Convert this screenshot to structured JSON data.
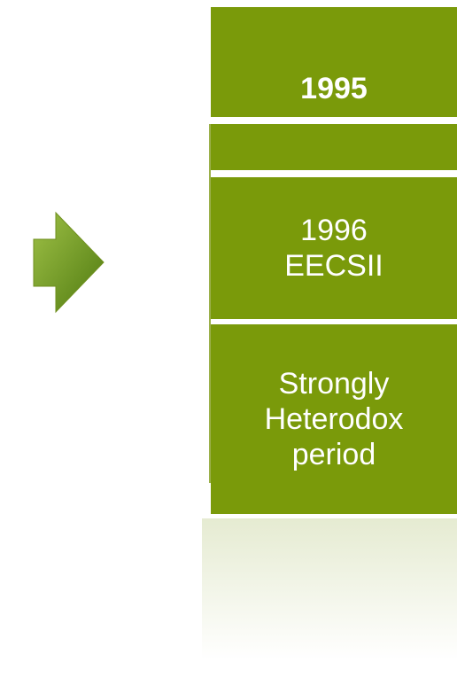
{
  "boxes": [
    {
      "label": "1995"
    },
    {
      "lines": [
        "1996",
        "EECSII"
      ]
    },
    {
      "lines": [
        "Strongly",
        "Heterodox",
        "period"
      ]
    }
  ]
}
